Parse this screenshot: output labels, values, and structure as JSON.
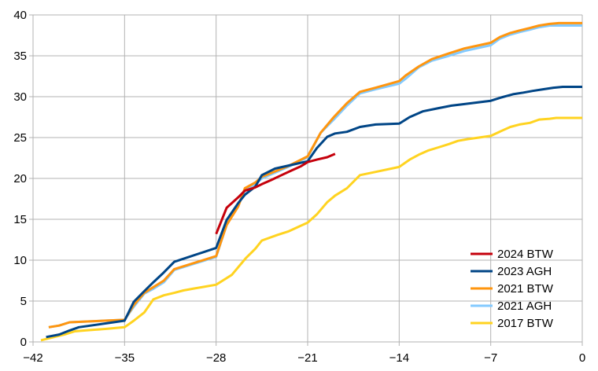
{
  "chart_data": {
    "type": "line",
    "title": "",
    "xlabel": "",
    "ylabel": "",
    "xlim": [
      -42,
      0
    ],
    "ylim": [
      0,
      40
    ],
    "x_ticks": [
      -42,
      -35,
      -28,
      -21,
      -14,
      -7,
      0
    ],
    "x_tick_labels": [
      "−42",
      "−35",
      "−28",
      "−21",
      "−14",
      "−7",
      "0"
    ],
    "y_ticks": [
      0,
      5,
      10,
      15,
      20,
      25,
      30,
      35,
      40
    ],
    "y_tick_labels": [
      "0",
      "5",
      "10",
      "15",
      "20",
      "25",
      "30",
      "35",
      "40"
    ],
    "grid": true,
    "legend_position": "bottom-right",
    "series": [
      {
        "name": "2017 BTW",
        "color": "#FFD320",
        "x": [
          -41.4,
          -40.4,
          -39.6,
          -38.8,
          -38.0,
          -37.2,
          -36.4,
          -35.0,
          -34.3,
          -33.5,
          -32.8,
          -32.0,
          -31.2,
          -30.5,
          -29.8,
          -28.0,
          -27.5,
          -26.8,
          -25.7,
          -25.0,
          -24.5,
          -23.3,
          -22.5,
          -21.0,
          -20.3,
          -19.5,
          -18.9,
          -18.0,
          -17.0,
          -15.8,
          -14.0,
          -13.2,
          -12.5,
          -11.8,
          -11.0,
          -10.2,
          -9.5,
          -8.8,
          -7.0,
          -6.2,
          -5.5,
          -4.8,
          -4.0,
          -3.3,
          -2.5,
          -2.0,
          0.0
        ],
        "y": [
          0.2,
          0.6,
          0.9,
          1.3,
          1.4,
          1.5,
          1.6,
          1.8,
          2.6,
          3.6,
          5.2,
          5.7,
          6.0,
          6.3,
          6.5,
          7.0,
          7.5,
          8.2,
          10.3,
          11.4,
          12.4,
          13.1,
          13.5,
          14.6,
          15.6,
          17.1,
          17.9,
          18.8,
          20.4,
          20.8,
          21.4,
          22.3,
          22.9,
          23.4,
          23.8,
          24.2,
          24.6,
          24.8,
          25.2,
          25.8,
          26.3,
          26.6,
          26.8,
          27.2,
          27.3,
          27.4,
          27.4
        ]
      },
      {
        "name": "2021 AGH",
        "color": "#83CAFF",
        "x": [
          -40.8,
          -40.0,
          -39.2,
          -35.0,
          -34.3,
          -33.5,
          -32.8,
          -32.0,
          -31.2,
          -28.0,
          -27.2,
          -26.3,
          -25.8,
          -25.0,
          -24.5,
          -22.5,
          -21.0,
          -20.0,
          -19.0,
          -18.0,
          -17.0,
          -15.8,
          -14.0,
          -13.5,
          -12.5,
          -11.5,
          -10.2,
          -9.0,
          -7.0,
          -6.3,
          -5.5,
          -4.8,
          -4.0,
          -3.3,
          -2.5,
          -1.8,
          0.0
        ],
        "y": [
          1.8,
          2.0,
          2.4,
          2.7,
          4.3,
          5.9,
          6.5,
          7.3,
          8.8,
          10.4,
          14.3,
          16.8,
          18.5,
          19.3,
          20.0,
          21.4,
          22.6,
          25.6,
          27.2,
          28.9,
          30.4,
          30.9,
          31.6,
          32.2,
          33.6,
          34.4,
          35.0,
          35.6,
          36.3,
          37.1,
          37.6,
          37.9,
          38.2,
          38.5,
          38.7,
          38.7,
          38.7
        ]
      },
      {
        "name": "2021 BTW",
        "color": "#FF950E",
        "x": [
          -40.8,
          -40.0,
          -39.2,
          -35.0,
          -34.3,
          -33.5,
          -32.8,
          -32.0,
          -31.2,
          -28.0,
          -27.2,
          -26.3,
          -25.8,
          -25.0,
          -24.5,
          -22.5,
          -21.0,
          -20.0,
          -19.0,
          -18.0,
          -17.0,
          -15.8,
          -14.0,
          -13.5,
          -12.5,
          -11.5,
          -10.2,
          -9.0,
          -7.0,
          -6.3,
          -5.5,
          -4.8,
          -4.0,
          -3.3,
          -2.5,
          -1.8,
          0.0
        ],
        "y": [
          1.8,
          2.0,
          2.4,
          2.7,
          4.5,
          6.0,
          6.7,
          7.5,
          8.9,
          10.5,
          14.3,
          16.6,
          18.8,
          19.5,
          20.2,
          21.5,
          22.7,
          25.6,
          27.5,
          29.2,
          30.6,
          31.1,
          31.9,
          32.6,
          33.7,
          34.6,
          35.3,
          35.9,
          36.6,
          37.3,
          37.8,
          38.1,
          38.4,
          38.7,
          38.9,
          39.0,
          39.0
        ]
      },
      {
        "name": "2023 AGH",
        "color": "#004586",
        "x": [
          -41.0,
          -40.0,
          -39.2,
          -38.5,
          -35.0,
          -34.3,
          -33.5,
          -32.8,
          -32.0,
          -31.2,
          -28.0,
          -27.2,
          -26.3,
          -25.8,
          -25.0,
          -24.5,
          -23.5,
          -21.0,
          -20.3,
          -19.5,
          -18.9,
          -18.0,
          -17.0,
          -15.8,
          -14.0,
          -13.2,
          -12.2,
          -11.0,
          -10.0,
          -9.0,
          -7.0,
          -6.2,
          -5.3,
          -4.5,
          -3.8,
          -3.0,
          -2.2,
          -1.5,
          0.0
        ],
        "y": [
          0.6,
          0.9,
          1.4,
          1.8,
          2.6,
          4.9,
          6.2,
          7.3,
          8.5,
          9.8,
          11.5,
          14.9,
          17.0,
          18.0,
          19.0,
          20.4,
          21.2,
          22.1,
          23.7,
          25.1,
          25.5,
          25.7,
          26.3,
          26.6,
          26.7,
          27.5,
          28.2,
          28.6,
          28.9,
          29.1,
          29.5,
          29.9,
          30.3,
          30.5,
          30.7,
          30.9,
          31.1,
          31.2,
          31.2
        ]
      },
      {
        "name": "2024 BTW",
        "color": "#C5000B",
        "x": [
          -28.0,
          -27.2,
          -26.3,
          -25.8,
          -25.0,
          -24.5,
          -23.8,
          -23.0,
          -22.2,
          -21.5,
          -21.0,
          -20.3,
          -19.5,
          -18.9
        ],
        "y": [
          13.2,
          16.4,
          17.7,
          18.5,
          18.9,
          19.3,
          19.8,
          20.4,
          21.0,
          21.5,
          22.0,
          22.3,
          22.6,
          23.0
        ]
      }
    ],
    "legend_order": [
      "2024 BTW",
      "2023 AGH",
      "2021 BTW",
      "2021 AGH",
      "2017 BTW"
    ]
  }
}
